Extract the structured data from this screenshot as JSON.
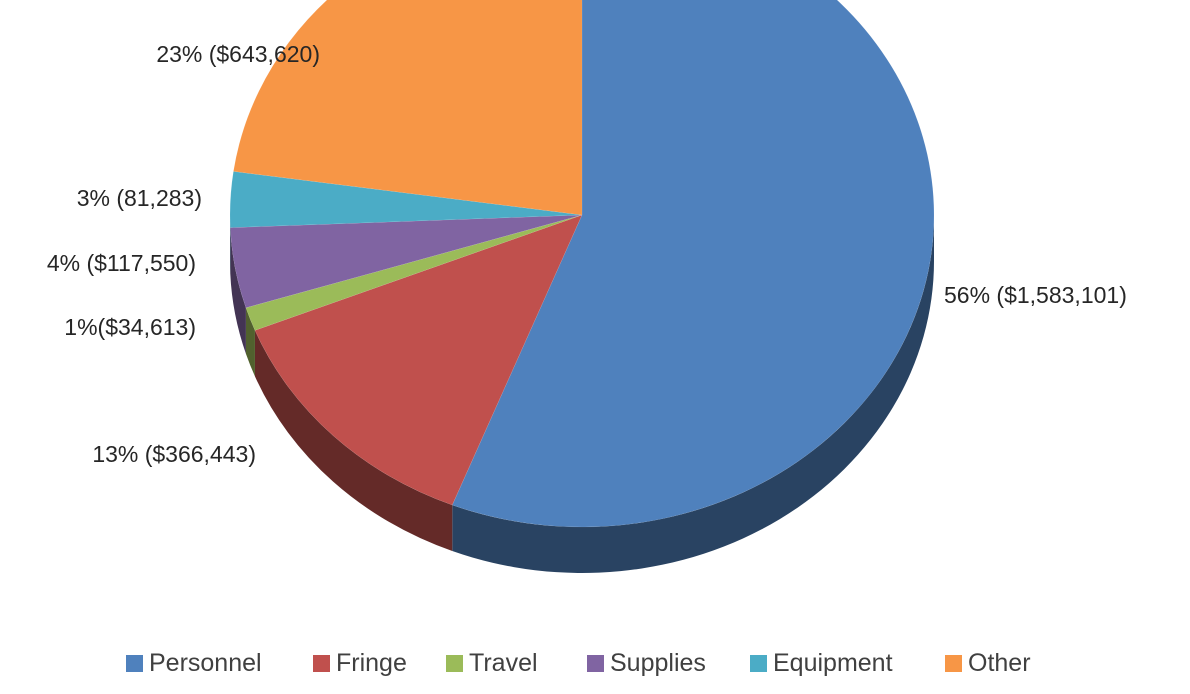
{
  "chart_data": {
    "type": "pie",
    "title": "",
    "slices": [
      {
        "category": "Personnel",
        "percent": 56,
        "value": 1583101,
        "label": "56% ($1,583,101)",
        "color": "#4F81BD"
      },
      {
        "category": "Fringe",
        "percent": 13,
        "value": 366443,
        "label": "13% ($366,443)",
        "color": "#C0504D"
      },
      {
        "category": "Travel",
        "percent": 1,
        "value": 34613,
        "label": "1%($34,613)",
        "color": "#9BBB59"
      },
      {
        "category": "Supplies",
        "percent": 4,
        "value": 117550,
        "label": "4% ($117,550)",
        "color": "#8064A2"
      },
      {
        "category": "Equipment",
        "percent": 3,
        "value": 81283,
        "label": "3% (81,283)",
        "color": "#4BACC6"
      },
      {
        "category": "Other",
        "percent": 23,
        "value": 643620,
        "label": "23% ($643,620)",
        "color": "#F79646"
      }
    ],
    "style": "3d-tilted",
    "legend_placement": "bottom",
    "legend": [
      "Personnel",
      "Fringe",
      "Travel",
      "Supplies",
      "Equipment",
      "Other"
    ]
  }
}
